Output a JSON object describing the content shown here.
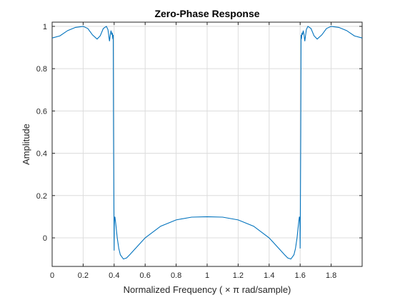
{
  "chart_data": {
    "type": "line",
    "title": "Zero-Phase Response",
    "xlabel": "Normalized  Frequency    ( × π  rad/sample)",
    "ylabel": "Amplitude",
    "xlim": [
      0,
      2
    ],
    "ylim": [
      -0.1,
      1.0
    ],
    "grid": true,
    "x_ticks": [
      0,
      0.2,
      0.4,
      0.6,
      0.8,
      1,
      1.2,
      1.4,
      1.6,
      1.8
    ],
    "x_tick_labels": [
      "0",
      "0.2",
      "0.4",
      "0.6",
      "0.8",
      "1",
      "1.2",
      "1.4",
      "1.6",
      "1.8"
    ],
    "y_ticks": [
      0,
      0.2,
      0.4,
      0.6,
      0.8,
      1
    ],
    "y_tick_labels": [
      "0",
      "0.2",
      "0.4",
      "0.6",
      "0.8",
      "1"
    ],
    "series": [
      {
        "color": "#0072bd",
        "x": [
          0,
          0.05,
          0.1,
          0.15,
          0.2,
          0.23,
          0.26,
          0.29,
          0.31,
          0.33,
          0.35,
          0.36,
          0.37,
          0.375,
          0.38,
          0.385,
          0.388,
          0.39,
          0.392,
          0.394,
          0.396,
          0.398,
          0.4,
          0.401,
          0.402,
          0.405,
          0.41,
          0.42,
          0.43,
          0.44,
          0.46,
          0.48,
          0.5,
          0.55,
          0.6,
          0.7,
          0.8,
          0.9,
          1.0,
          1.1,
          1.2,
          1.3,
          1.4,
          1.45,
          1.5,
          1.52,
          1.54,
          1.56,
          1.57,
          1.58,
          1.59,
          1.595,
          1.598,
          1.599,
          1.6,
          1.602,
          1.604,
          1.606,
          1.608,
          1.61,
          1.612,
          1.615,
          1.62,
          1.625,
          1.63,
          1.64,
          1.65,
          1.67,
          1.69,
          1.71,
          1.74,
          1.77,
          1.8,
          1.85,
          1.9,
          1.95,
          2.0
        ],
        "y": [
          0.945,
          0.955,
          0.98,
          0.995,
          1.0,
          0.99,
          0.96,
          0.94,
          0.955,
          0.99,
          1.0,
          0.985,
          0.93,
          0.96,
          0.98,
          0.96,
          0.97,
          0.95,
          0.94,
          0.96,
          0.5,
          0.2,
          -0.06,
          0.06,
          0.09,
          0.1,
          0.07,
          0.0,
          -0.05,
          -0.08,
          -0.1,
          -0.095,
          -0.08,
          -0.04,
          0.0,
          0.055,
          0.085,
          0.098,
          0.1,
          0.098,
          0.085,
          0.055,
          0.0,
          -0.04,
          -0.08,
          -0.095,
          -0.1,
          -0.08,
          -0.05,
          0.0,
          0.07,
          0.1,
          0.09,
          0.06,
          -0.05,
          0.2,
          0.5,
          0.96,
          0.94,
          0.95,
          0.97,
          0.96,
          0.98,
          0.96,
          0.93,
          0.985,
          1.0,
          0.99,
          0.955,
          0.94,
          0.96,
          0.99,
          1.0,
          0.995,
          0.98,
          0.955,
          0.945
        ]
      }
    ]
  }
}
